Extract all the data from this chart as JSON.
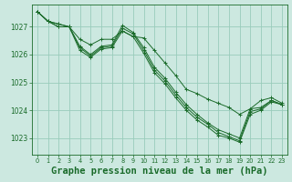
{
  "background_color": "#cce8e0",
  "grid_color": "#99ccbb",
  "line_color": "#1a6b2a",
  "xlabel": "Graphe pression niveau de la mer (hPa)",
  "xlabel_fontsize": 7.5,
  "ylim": [
    1022.4,
    1027.8
  ],
  "xlim": [
    -0.5,
    23.5
  ],
  "yticks": [
    1023,
    1024,
    1025,
    1026,
    1027
  ],
  "xticks": [
    0,
    1,
    2,
    3,
    4,
    5,
    6,
    7,
    8,
    9,
    10,
    11,
    12,
    13,
    14,
    15,
    16,
    17,
    18,
    19,
    20,
    21,
    22,
    23
  ],
  "series": [
    [
      1027.55,
      1027.2,
      1027.1,
      1027.0,
      1026.55,
      1026.35,
      1026.55,
      1026.55,
      1026.85,
      1026.65,
      1026.6,
      1026.15,
      1025.7,
      1025.25,
      1024.75,
      1024.6,
      1024.4,
      1024.25,
      1024.1,
      1023.85,
      1024.05,
      1024.35,
      1024.45,
      1024.25
    ],
    [
      1027.55,
      1027.2,
      1027.1,
      1027.0,
      1026.3,
      1026.0,
      1026.3,
      1026.35,
      1027.05,
      1026.8,
      1026.25,
      1025.55,
      1025.15,
      1024.65,
      1024.2,
      1023.85,
      1023.55,
      1023.3,
      1023.15,
      1023.0,
      1024.05,
      1024.1,
      1024.35,
      1024.2
    ],
    [
      1027.55,
      1027.2,
      1027.0,
      1027.0,
      1026.25,
      1025.95,
      1026.25,
      1026.3,
      1026.95,
      1026.75,
      1026.15,
      1025.45,
      1025.05,
      1024.55,
      1024.1,
      1023.75,
      1023.5,
      1023.2,
      1023.05,
      1022.9,
      1023.95,
      1024.05,
      1024.35,
      1024.2
    ],
    [
      1027.55,
      1027.2,
      1027.0,
      1027.0,
      1026.15,
      1025.9,
      1026.2,
      1026.25,
      1026.85,
      1026.65,
      1026.05,
      1025.35,
      1024.95,
      1024.45,
      1024.0,
      1023.65,
      1023.4,
      1023.1,
      1023.0,
      1022.85,
      1023.85,
      1024.0,
      1024.3,
      1024.2
    ]
  ]
}
